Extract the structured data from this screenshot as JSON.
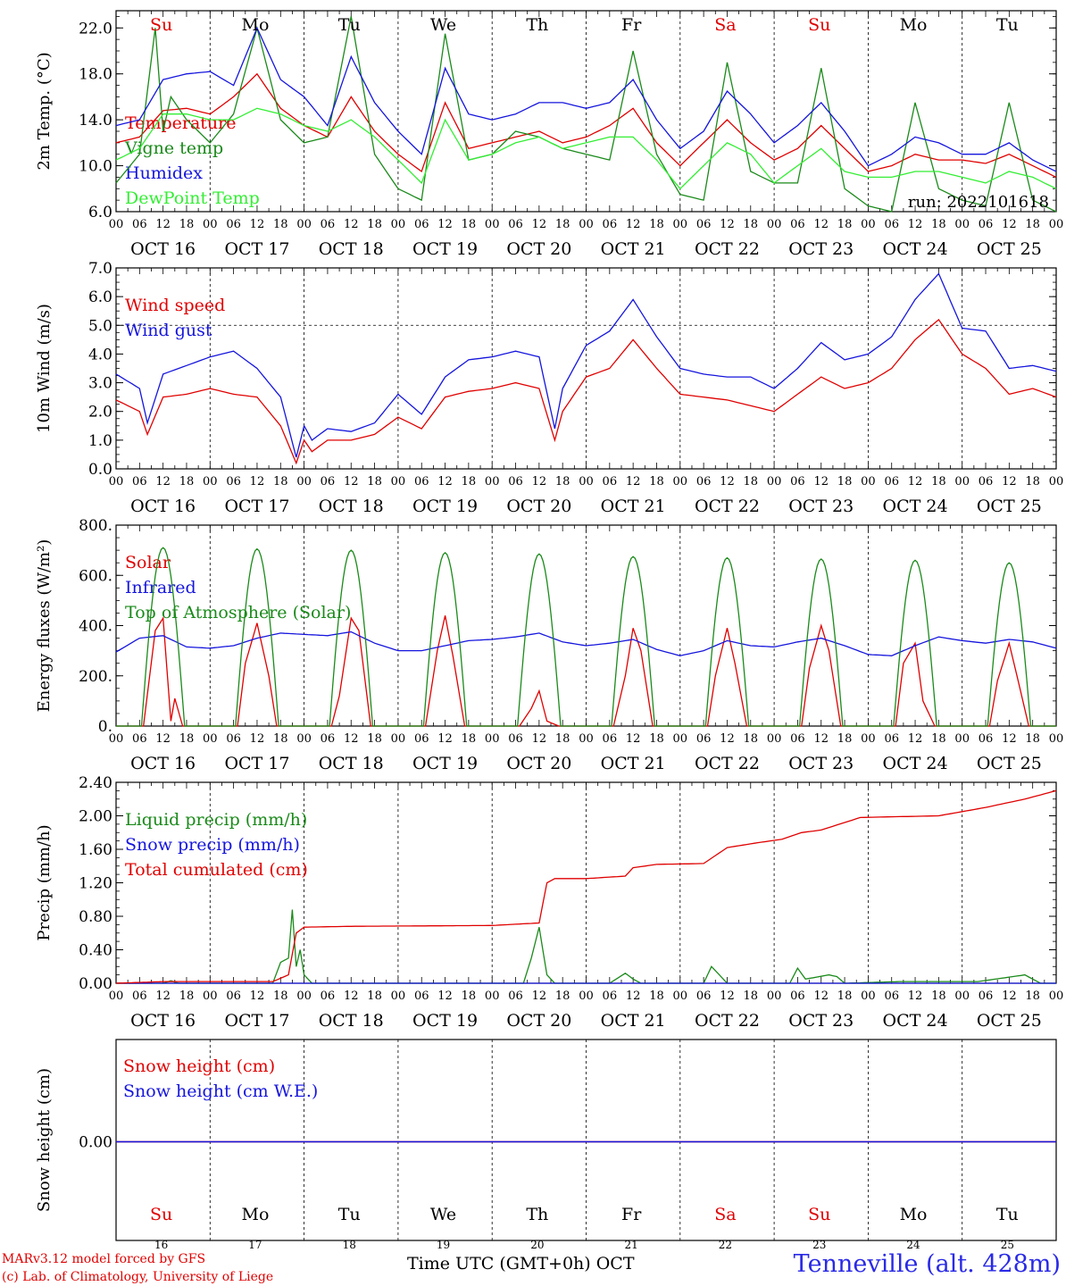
{
  "run_label": "run: 2022101618",
  "day_names": [
    "Su",
    "Mo",
    "Tu",
    "We",
    "Th",
    "Fr",
    "Sa",
    "Su",
    "Mo",
    "Tu"
  ],
  "day_colors": [
    "#e00000",
    "#000000",
    "#000000",
    "#000000",
    "#000000",
    "#000000",
    "#e00000",
    "#e00000",
    "#000000",
    "#000000"
  ],
  "date_labels": [
    "OCT 16",
    "OCT 17",
    "OCT 18",
    "OCT 19",
    "OCT 20",
    "OCT 21",
    "OCT 22",
    "OCT 23",
    "OCT 24",
    "OCT 25"
  ],
  "day_numbers": [
    "16",
    "17",
    "18",
    "19",
    "20",
    "21",
    "22",
    "23",
    "24",
    "25"
  ],
  "hour_labels": [
    "00",
    "06",
    "12",
    "18"
  ],
  "footer": {
    "credit_line1": "MARv3.12 model forced by GFS",
    "credit_line2": "(c) Lab. of Climatology, University of Liege",
    "x_title": "Time UTC (GMT+0h) OCT",
    "station": "Tenneville (alt. 428m)"
  },
  "chart_data": [
    {
      "type": "line",
      "ylabel": "2m Temp. (°C)",
      "ylim": [
        6,
        23.5
      ],
      "yticks": [
        "6.0",
        "10.0",
        "14.0",
        "18.0",
        "22.0"
      ],
      "ytick_values": [
        6,
        10,
        14,
        18,
        22
      ],
      "x_unit": "hours since OCT 16 00 UTC",
      "series": [
        {
          "name": "Temperature",
          "color": "#e00000",
          "x": [
            0,
            6,
            12,
            18,
            24,
            30,
            36,
            42,
            48,
            54,
            60,
            66,
            72,
            78,
            84,
            90,
            96,
            102,
            108,
            114,
            120,
            126,
            132,
            138,
            144,
            150,
            156,
            162,
            168,
            174,
            180,
            186,
            192,
            198,
            204,
            210,
            216,
            222,
            228,
            234,
            240
          ],
          "y": [
            12.0,
            12.5,
            14.8,
            15.0,
            14.5,
            16.0,
            18.0,
            15.0,
            13.5,
            12.5,
            16.0,
            13.0,
            11.0,
            9.5,
            15.5,
            11.5,
            12.0,
            12.5,
            13.0,
            12.0,
            12.5,
            13.5,
            15.0,
            12.0,
            10.0,
            12.0,
            14.0,
            12.0,
            10.5,
            11.5,
            13.5,
            11.5,
            9.5,
            10.0,
            11.0,
            10.5,
            10.5,
            10.2,
            11.0,
            10.0,
            9.0
          ]
        },
        {
          "name": "Vigne temp",
          "color": "#1a8a1a",
          "x": [
            0,
            6,
            10,
            12,
            14,
            18,
            24,
            30,
            36,
            42,
            48,
            54,
            60,
            66,
            72,
            78,
            84,
            90,
            96,
            102,
            108,
            114,
            120,
            126,
            132,
            138,
            144,
            150,
            156,
            162,
            168,
            174,
            180,
            186,
            192,
            198,
            204,
            210,
            216,
            222,
            228,
            234,
            240
          ],
          "y": [
            8.5,
            11.0,
            22.0,
            13.0,
            16.0,
            14.0,
            12.0,
            14.5,
            22.0,
            14.0,
            12.0,
            12.5,
            23.0,
            11.0,
            8.0,
            7.0,
            21.5,
            10.5,
            11.0,
            13.0,
            12.5,
            11.5,
            11.0,
            10.5,
            20.0,
            11.0,
            7.5,
            7.0,
            19.0,
            9.5,
            8.5,
            8.5,
            18.5,
            8.0,
            6.5,
            6.0,
            15.5,
            8.0,
            7.0,
            6.5,
            15.5,
            7.0,
            6.0
          ]
        },
        {
          "name": "Humidex",
          "color": "#1515dd",
          "x": [
            0,
            6,
            12,
            18,
            24,
            30,
            36,
            42,
            48,
            54,
            60,
            66,
            72,
            78,
            84,
            90,
            96,
            102,
            108,
            114,
            120,
            126,
            132,
            138,
            144,
            150,
            156,
            162,
            168,
            174,
            180,
            186,
            192,
            198,
            204,
            210,
            216,
            222,
            228,
            234,
            240
          ],
          "y": [
            13.5,
            14.0,
            17.5,
            18.0,
            18.2,
            17.0,
            22.0,
            17.5,
            16.0,
            13.5,
            19.5,
            15.5,
            13.0,
            11.0,
            18.5,
            14.5,
            14.0,
            14.5,
            15.5,
            15.5,
            15.0,
            15.5,
            17.5,
            14.0,
            11.5,
            13.0,
            16.5,
            14.5,
            12.0,
            13.5,
            15.5,
            13.0,
            10.0,
            11.0,
            12.5,
            12.0,
            11.0,
            11.0,
            12.0,
            10.5,
            9.5
          ]
        },
        {
          "name": "DewPoint Temp",
          "color": "#33ee33",
          "x": [
            0,
            6,
            12,
            18,
            24,
            30,
            36,
            42,
            48,
            54,
            60,
            66,
            72,
            78,
            84,
            90,
            96,
            102,
            108,
            114,
            120,
            126,
            132,
            138,
            144,
            150,
            156,
            162,
            168,
            174,
            180,
            186,
            192,
            198,
            204,
            210,
            216,
            222,
            228,
            234,
            240
          ],
          "y": [
            10.5,
            11.5,
            14.5,
            14.5,
            14.0,
            14.0,
            15.0,
            14.5,
            13.5,
            13.0,
            14.0,
            12.5,
            10.5,
            8.5,
            14.0,
            10.5,
            11.0,
            12.0,
            12.5,
            11.5,
            12.0,
            12.5,
            12.5,
            10.5,
            8.0,
            10.0,
            12.0,
            11.0,
            8.5,
            10.0,
            11.5,
            9.5,
            9.0,
            9.0,
            9.5,
            9.5,
            9.0,
            8.5,
            9.5,
            9.0,
            8.0
          ]
        }
      ]
    },
    {
      "type": "line",
      "ylabel": "10m Wind (m/s)",
      "ylim": [
        0,
        7
      ],
      "yticks": [
        "0.0",
        "1.0",
        "2.0",
        "3.0",
        "4.0",
        "5.0",
        "6.0",
        "7.0"
      ],
      "ytick_values": [
        0,
        1,
        2,
        3,
        4,
        5,
        6,
        7
      ],
      "x_unit": "hours since OCT 16 00 UTC",
      "series": [
        {
          "name": "Wind speed",
          "color": "#e00000",
          "x": [
            0,
            6,
            8,
            12,
            18,
            24,
            30,
            36,
            42,
            46,
            48,
            50,
            54,
            60,
            66,
            72,
            78,
            84,
            90,
            96,
            102,
            108,
            112,
            114,
            120,
            126,
            132,
            138,
            144,
            150,
            156,
            162,
            168,
            174,
            180,
            186,
            192,
            198,
            204,
            210,
            216,
            222,
            228,
            234,
            240
          ],
          "y": [
            2.4,
            2.0,
            1.2,
            2.5,
            2.6,
            2.8,
            2.6,
            2.5,
            1.5,
            0.2,
            1.0,
            0.6,
            1.0,
            1.0,
            1.2,
            1.8,
            1.4,
            2.5,
            2.7,
            2.8,
            3.0,
            2.8,
            1.0,
            2.0,
            3.2,
            3.5,
            4.5,
            3.5,
            2.6,
            2.5,
            2.4,
            2.2,
            2.0,
            2.6,
            3.2,
            2.8,
            3.0,
            3.5,
            4.5,
            5.2,
            4.0,
            3.5,
            2.6,
            2.8,
            2.5
          ]
        },
        {
          "name": "Wind gust",
          "color": "#1515dd",
          "x": [
            0,
            6,
            8,
            12,
            18,
            24,
            30,
            36,
            42,
            46,
            48,
            50,
            54,
            60,
            66,
            72,
            78,
            84,
            90,
            96,
            102,
            108,
            112,
            114,
            120,
            126,
            132,
            138,
            144,
            150,
            156,
            162,
            168,
            174,
            180,
            186,
            192,
            198,
            204,
            210,
            216,
            222,
            228,
            234,
            240
          ],
          "y": [
            3.3,
            2.8,
            1.6,
            3.3,
            3.6,
            3.9,
            4.1,
            3.5,
            2.5,
            0.4,
            1.5,
            1.0,
            1.4,
            1.3,
            1.6,
            2.6,
            1.9,
            3.2,
            3.8,
            3.9,
            4.1,
            3.9,
            1.4,
            2.8,
            4.3,
            4.8,
            5.9,
            4.6,
            3.5,
            3.3,
            3.2,
            3.2,
            2.8,
            3.5,
            4.4,
            3.8,
            4.0,
            4.6,
            5.9,
            6.8,
            4.9,
            4.8,
            3.5,
            3.6,
            3.4
          ]
        }
      ]
    },
    {
      "type": "line",
      "ylabel": "Energy fluxes (W/m²)",
      "ylim": [
        0,
        800
      ],
      "yticks": [
        "0.",
        "200.",
        "400.",
        "600.",
        "800."
      ],
      "ytick_values": [
        0,
        200,
        400,
        600,
        800
      ],
      "x_unit": "hours since OCT 16 00 UTC",
      "series": [
        {
          "name": "Solar",
          "color": "#e00000",
          "x": [
            0,
            7,
            10,
            12,
            14,
            15,
            17,
            19,
            24,
            31,
            33,
            36,
            39,
            41,
            48,
            55,
            57,
            60,
            62,
            65,
            72,
            79,
            82,
            84,
            86,
            89,
            96,
            103,
            106,
            108,
            110,
            113,
            120,
            127,
            130,
            132,
            134,
            137,
            144,
            151,
            153,
            156,
            158,
            161,
            168,
            175,
            177,
            180,
            182,
            185,
            192,
            199,
            201,
            204,
            206,
            209,
            216,
            223,
            225,
            228,
            230,
            233,
            240
          ],
          "y": [
            0,
            0,
            380,
            430,
            20,
            110,
            0,
            0,
            0,
            0,
            250,
            410,
            200,
            0,
            0,
            0,
            120,
            430,
            380,
            0,
            0,
            0,
            300,
            440,
            280,
            0,
            0,
            0,
            70,
            140,
            20,
            0,
            0,
            0,
            200,
            390,
            300,
            0,
            0,
            0,
            200,
            390,
            250,
            0,
            0,
            0,
            230,
            400,
            300,
            0,
            0,
            0,
            250,
            330,
            100,
            0,
            0,
            0,
            180,
            330,
            200,
            0,
            0
          ]
        },
        {
          "name": "Infrared",
          "color": "#1515dd",
          "x": [
            0,
            6,
            12,
            18,
            24,
            30,
            36,
            42,
            48,
            54,
            60,
            66,
            72,
            78,
            84,
            90,
            96,
            102,
            108,
            114,
            120,
            126,
            132,
            138,
            144,
            150,
            156,
            162,
            168,
            174,
            180,
            186,
            192,
            198,
            204,
            210,
            216,
            222,
            228,
            234,
            240
          ],
          "y": [
            295,
            350,
            360,
            315,
            310,
            320,
            350,
            370,
            365,
            360,
            375,
            330,
            300,
            300,
            320,
            340,
            345,
            355,
            370,
            335,
            320,
            330,
            345,
            305,
            280,
            300,
            340,
            320,
            315,
            335,
            350,
            320,
            285,
            280,
            320,
            355,
            340,
            330,
            345,
            335,
            310
          ]
        },
        {
          "name": "Top of Atmosphere (Solar)",
          "color": "#1a8a1a",
          "exact": false,
          "peaks": [
            710,
            705,
            700,
            690,
            685,
            675,
            670,
            665,
            660,
            650
          ],
          "day_start_hour": 6.5,
          "day_end_hour": 17.5
        }
      ]
    },
    {
      "type": "line",
      "ylabel": "Precip (mm/h)",
      "ylim": [
        0,
        2.4
      ],
      "yticks": [
        "0.00",
        "0.40",
        "0.80",
        "1.20",
        "1.60",
        "2.00",
        "2.40"
      ],
      "ytick_values": [
        0,
        0.4,
        0.8,
        1.2,
        1.6,
        2.0,
        2.4
      ],
      "x_unit": "hours since OCT 16 00 UTC",
      "series": [
        {
          "name": "Liquid precip (mm/h)",
          "color": "#1a8a1a",
          "x": [
            0,
            12,
            14,
            16,
            40,
            42,
            44,
            45,
            46,
            47,
            48,
            50,
            52,
            96,
            104,
            106,
            108,
            110,
            112,
            126,
            130,
            132,
            134,
            150,
            152,
            154,
            156,
            172,
            174,
            176,
            182,
            184,
            186,
            200,
            220,
            232,
            234,
            236,
            240
          ],
          "y": [
            0,
            0,
            0.03,
            0,
            0,
            0.25,
            0.3,
            0.88,
            0.2,
            0.4,
            0.1,
            0,
            0,
            0,
            0,
            0.3,
            0.67,
            0.1,
            0,
            0,
            0.12,
            0.05,
            0,
            0,
            0.2,
            0.1,
            0,
            0,
            0.18,
            0.05,
            0.1,
            0.08,
            0,
            0.02,
            0.02,
            0.1,
            0.05,
            0,
            0
          ]
        },
        {
          "name": "Snow precip (mm/h)",
          "color": "#1515dd",
          "x": [
            0,
            240
          ],
          "y": [
            0,
            0
          ]
        },
        {
          "name": "Total cumulated (cm)",
          "color": "#e00000",
          "x": [
            0,
            12,
            40,
            44,
            46,
            48,
            60,
            96,
            108,
            110,
            112,
            120,
            130,
            132,
            138,
            150,
            156,
            164,
            170,
            175,
            180,
            190,
            210,
            222,
            232,
            240
          ],
          "y": [
            0,
            0.02,
            0.02,
            0.1,
            0.6,
            0.67,
            0.68,
            0.69,
            0.72,
            1.2,
            1.25,
            1.25,
            1.28,
            1.38,
            1.42,
            1.43,
            1.62,
            1.68,
            1.72,
            1.8,
            1.83,
            1.98,
            2.0,
            2.1,
            2.2,
            2.3
          ]
        }
      ]
    },
    {
      "type": "line",
      "ylabel": "Snow height (cm)",
      "yticks": [
        "0.00"
      ],
      "ytick_values": [
        0
      ],
      "series": [
        {
          "name": "Snow height (cm)",
          "color": "#e00000",
          "x": [
            0,
            240
          ],
          "y": [
            0,
            0
          ]
        },
        {
          "name": "Snow height (cm W.E.)",
          "color": "#1515dd",
          "x": [
            0,
            240
          ],
          "y": [
            0,
            0
          ]
        }
      ]
    }
  ]
}
